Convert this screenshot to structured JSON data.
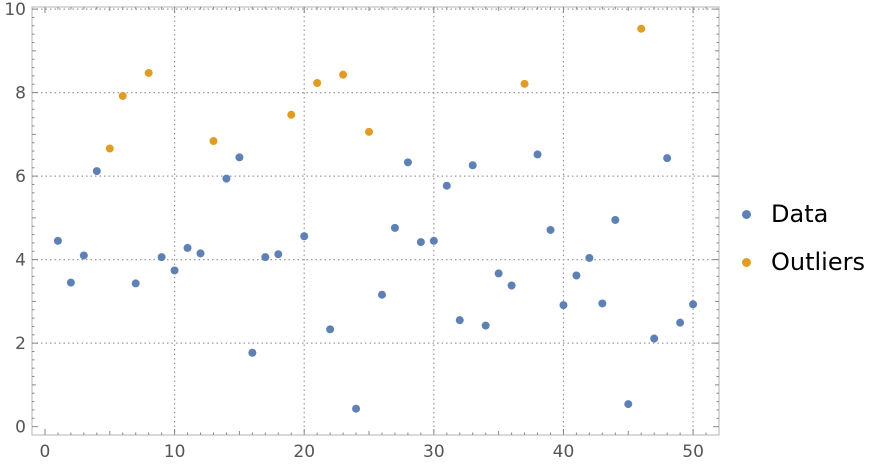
{
  "chart_data": {
    "type": "scatter",
    "title": "",
    "xlabel": "",
    "ylabel": "",
    "xlim": [
      -1,
      52
    ],
    "ylim": [
      -0.2,
      10.05
    ],
    "x_ticks": [
      0,
      10,
      20,
      30,
      40,
      50
    ],
    "y_ticks": [
      0,
      2,
      4,
      6,
      8,
      10
    ],
    "grid": true,
    "legend_position": "right",
    "series": [
      {
        "name": "Data",
        "color": "#5e81b5",
        "points": [
          [
            1,
            4.45
          ],
          [
            2,
            3.45
          ],
          [
            3,
            4.1
          ],
          [
            4,
            6.12
          ],
          [
            7,
            3.43
          ],
          [
            9,
            4.06
          ],
          [
            10,
            3.74
          ],
          [
            11,
            4.28
          ],
          [
            12,
            4.15
          ],
          [
            14,
            5.94
          ],
          [
            15,
            6.45
          ],
          [
            16,
            1.77
          ],
          [
            17,
            4.06
          ],
          [
            18,
            4.13
          ],
          [
            20,
            4.56
          ],
          [
            22,
            2.33
          ],
          [
            24,
            0.43
          ],
          [
            26,
            3.16
          ],
          [
            27,
            4.76
          ],
          [
            28,
            6.33
          ],
          [
            29,
            4.42
          ],
          [
            30,
            4.45
          ],
          [
            31,
            5.77
          ],
          [
            32,
            2.55
          ],
          [
            33,
            6.26
          ],
          [
            34,
            2.42
          ],
          [
            35,
            3.67
          ],
          [
            36,
            3.38
          ],
          [
            38,
            6.52
          ],
          [
            39,
            4.71
          ],
          [
            40,
            2.91
          ],
          [
            41,
            3.62
          ],
          [
            42,
            4.04
          ],
          [
            43,
            2.95
          ],
          [
            44,
            4.95
          ],
          [
            45,
            0.54
          ],
          [
            47,
            2.11
          ],
          [
            48,
            6.43
          ],
          [
            49,
            2.49
          ],
          [
            50,
            2.93
          ]
        ]
      },
      {
        "name": "Outliers",
        "color": "#e19c24",
        "points": [
          [
            5,
            6.66
          ],
          [
            6,
            7.92
          ],
          [
            8,
            8.47
          ],
          [
            13,
            6.84
          ],
          [
            19,
            7.47
          ],
          [
            21,
            8.23
          ],
          [
            23,
            8.43
          ],
          [
            25,
            7.06
          ],
          [
            37,
            8.21
          ],
          [
            46,
            9.53
          ]
        ]
      }
    ]
  },
  "legend": {
    "data_label": "Data",
    "outliers_label": "Outliers",
    "data_color": "#5e81b5",
    "outliers_color": "#e19c24"
  }
}
